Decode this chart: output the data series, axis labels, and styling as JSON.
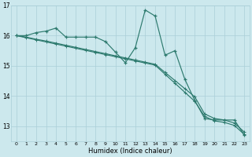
{
  "x": [
    0,
    1,
    2,
    3,
    4,
    5,
    6,
    7,
    8,
    9,
    10,
    11,
    12,
    13,
    14,
    15,
    16,
    17,
    18,
    19,
    20,
    21,
    22,
    23
  ],
  "line_peak": [
    16.0,
    16.0,
    16.1,
    16.15,
    16.25,
    15.95,
    15.95,
    15.95,
    15.95,
    15.8,
    15.45,
    15.1,
    15.6,
    16.85,
    16.65,
    15.35,
    15.5,
    14.55,
    13.85,
    13.25,
    13.2,
    13.2,
    13.2,
    12.7
  ],
  "line_straight1": [
    16.0,
    15.95,
    15.88,
    15.82,
    15.75,
    15.68,
    15.61,
    15.54,
    15.47,
    15.4,
    15.33,
    15.26,
    15.19,
    15.12,
    15.05,
    14.78,
    14.51,
    14.24,
    13.97,
    13.4,
    13.25,
    13.2,
    13.1,
    12.8
  ],
  "line_straight2": [
    16.0,
    15.93,
    15.86,
    15.79,
    15.72,
    15.65,
    15.58,
    15.51,
    15.44,
    15.37,
    15.3,
    15.23,
    15.16,
    15.09,
    15.02,
    14.72,
    14.42,
    14.12,
    13.82,
    13.32,
    13.17,
    13.12,
    13.02,
    12.72
  ],
  "xlabel": "Humidex (Indice chaleur)",
  "ylim": [
    12.5,
    17.0
  ],
  "xlim": [
    -0.5,
    23.5
  ],
  "yticks": [
    13,
    14,
    15,
    16,
    17
  ],
  "xticks": [
    0,
    1,
    2,
    3,
    4,
    5,
    6,
    7,
    8,
    9,
    10,
    11,
    12,
    13,
    14,
    15,
    16,
    17,
    18,
    19,
    20,
    21,
    22,
    23
  ],
  "color": "#2d7a6e",
  "bg_color": "#cce8ed",
  "grid_color": "#aacfd8"
}
